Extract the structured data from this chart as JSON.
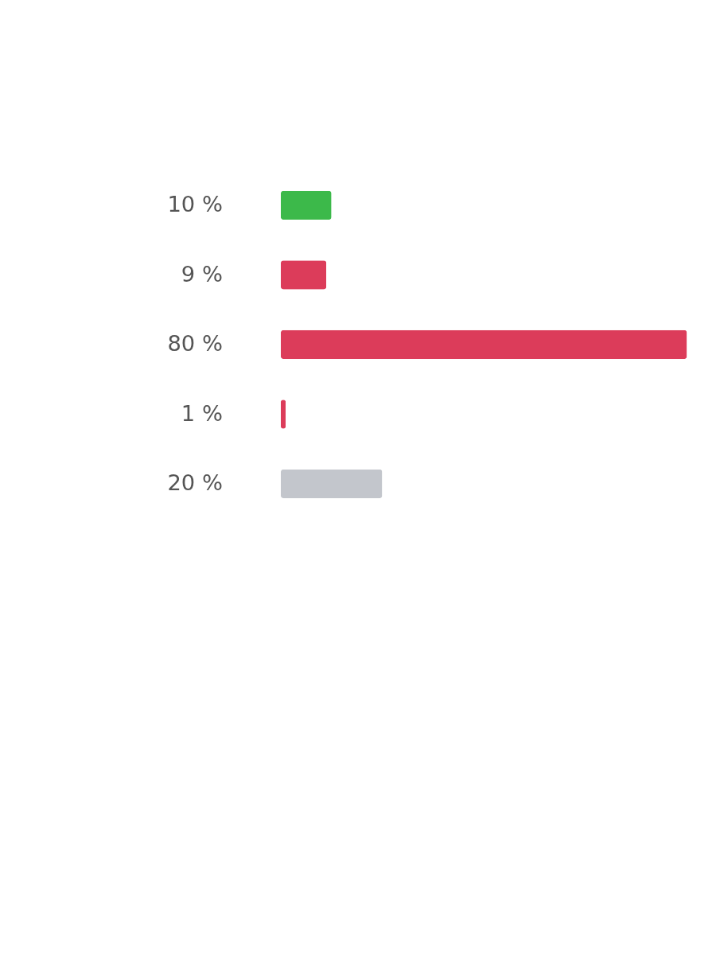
{
  "chart_data": {
    "type": "bar",
    "orientation": "horizontal",
    "categories": [
      null,
      null,
      null,
      null,
      null
    ],
    "values": [
      10,
      9,
      80,
      1,
      20
    ],
    "colors": [
      "#3cb94a",
      "#dc3c5a",
      "#dc3c5a",
      "#dc3c5a",
      "#c3c6cc"
    ],
    "value_labels": [
      "10 %",
      "9 %",
      "80 %",
      "1 %",
      "20 %"
    ]
  }
}
